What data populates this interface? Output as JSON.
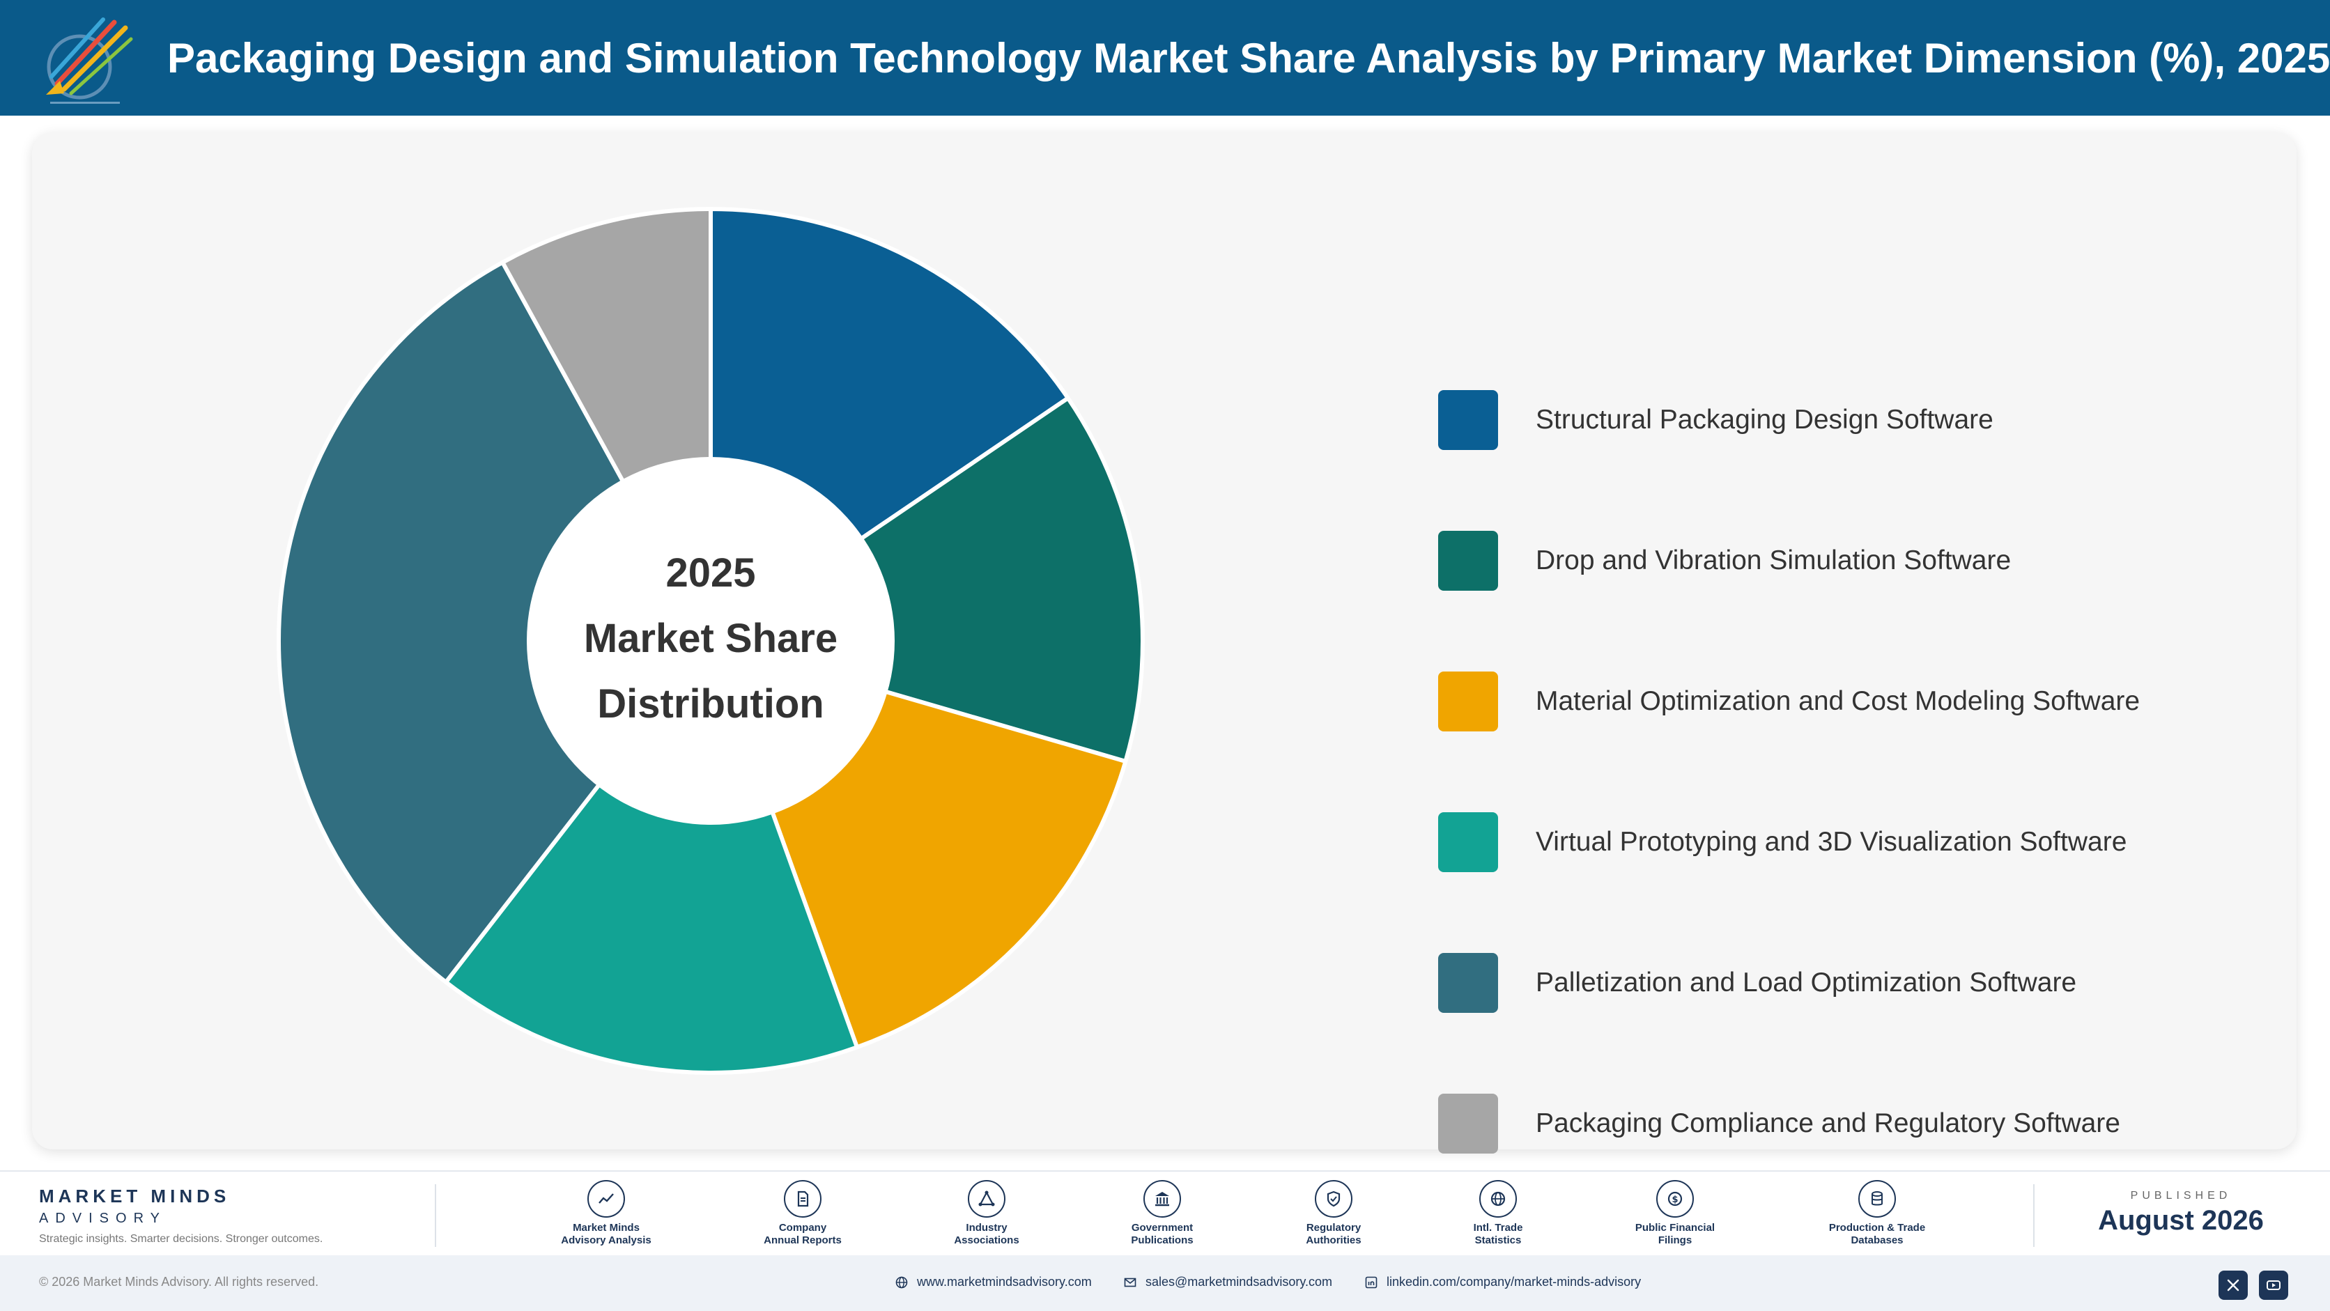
{
  "header": {
    "title": "Packaging Design and Simulation Technology Market Share Analysis by Primary Market Dimension (%), 2025"
  },
  "chart_data": {
    "type": "pie",
    "variant": "donut",
    "center_text": [
      "2025",
      "Market Share",
      "Distribution"
    ],
    "categories": [
      "Structural Packaging Design Software",
      "Drop and Vibration Simulation Software",
      "Material Optimization and Cost Modeling Software",
      "Virtual Prototyping and 3D Visualization Software",
      "Palletization and Load Optimization Software",
      "Packaging Compliance and Regulatory Software"
    ],
    "values": [
      15.5,
      14.0,
      15.0,
      16.0,
      31.5,
      8.0
    ],
    "colors": [
      "#0a5f94",
      "#0d7068",
      "#f0a500",
      "#12a394",
      "#316e80",
      "#a6a6a6"
    ],
    "legend_position": "right"
  },
  "footer": {
    "brand_name": "MARKET MINDS",
    "brand_sub": "ADVISORY",
    "tagline": "Strategic insights. Smarter decisions. Stronger outcomes.",
    "sources": [
      {
        "label": "Market Minds\nAdvisory Analysis",
        "icon": "chart-line-icon"
      },
      {
        "label": "Company\nAnnual Reports",
        "icon": "document-icon"
      },
      {
        "label": "Industry\nAssociations",
        "icon": "network-icon"
      },
      {
        "label": "Government\nPublications",
        "icon": "building-icon"
      },
      {
        "label": "Regulatory\nAuthorities",
        "icon": "shield-icon"
      },
      {
        "label": "Intl. Trade\nStatistics",
        "icon": "globe-icon"
      },
      {
        "label": "Public Financial\nFilings",
        "icon": "coin-icon"
      },
      {
        "label": "Production & Trade\nDatabases",
        "icon": "database-icon"
      }
    ],
    "published_label": "PUBLISHED",
    "published_date": "August 2026"
  },
  "bottom_bar": {
    "copyright": "© 2026 Market Minds Advisory. All rights reserved.",
    "website": "www.marketmindsadvisory.com",
    "email": "sales@marketmindsadvisory.com",
    "linkedin": "linkedin.com/company/market-minds-advisory"
  }
}
